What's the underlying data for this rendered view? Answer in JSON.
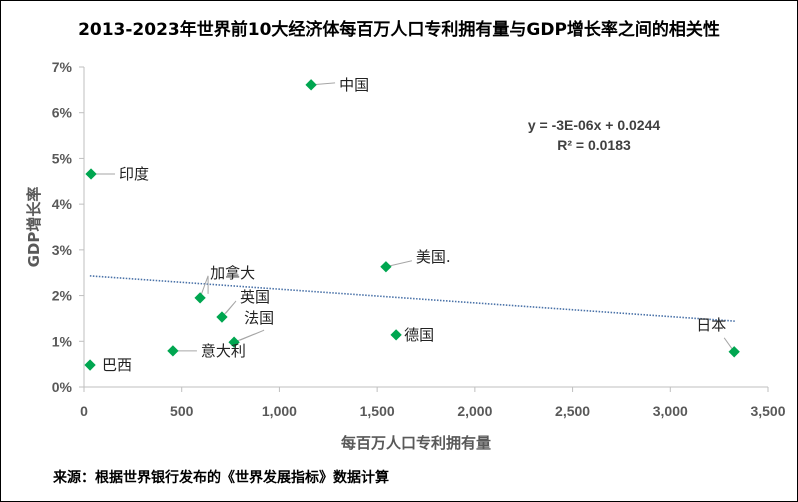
{
  "chart_data": {
    "type": "scatter",
    "title": "2013-2023年世界前10大经济体每百万人口专利拥有量与GDP增长率之间的相关性",
    "xlabel": "每百万人口专利拥有量",
    "ylabel": "GDP增长率",
    "xlim": [
      0,
      3500
    ],
    "ylim": [
      0,
      0.07
    ],
    "x_ticks": [
      "0",
      "500",
      "1,000",
      "1,500",
      "2,000",
      "2,500",
      "3,000",
      "3,500"
    ],
    "y_ticks": [
      "0%",
      "1%",
      "2%",
      "3%",
      "4%",
      "5%",
      "6%",
      "7%"
    ],
    "grid": false,
    "marker_color": "#00a650",
    "trend_color": "#4a72a8",
    "points": [
      {
        "label": "中国",
        "x": 1162,
        "y": 0.0661
      },
      {
        "label": "印度",
        "x": 36,
        "y": 0.0466
      },
      {
        "label": "加拿大",
        "x": 594,
        "y": 0.0195
      },
      {
        "label": "英国",
        "x": 706,
        "y": 0.0153
      },
      {
        "label": "法国",
        "x": 768,
        "y": 0.0098
      },
      {
        "label": "意大利",
        "x": 455,
        "y": 0.0079
      },
      {
        "label": "巴西",
        "x": 31,
        "y": 0.0048
      },
      {
        "label": "美国.",
        "x": 1545,
        "y": 0.0263
      },
      {
        "label": "德国",
        "x": 1597,
        "y": 0.0114
      },
      {
        "label": "日本",
        "x": 3327,
        "y": 0.0077
      }
    ],
    "trendline": {
      "slope": -3e-06,
      "intercept": 0.0244,
      "x_range": [
        30,
        3330
      ]
    },
    "equation": "y = -3E-06x + 0.0244",
    "r_squared": "R² = 0.0183"
  },
  "source": "来源：根据世界银行发布的《世界发展指标》数据计算"
}
